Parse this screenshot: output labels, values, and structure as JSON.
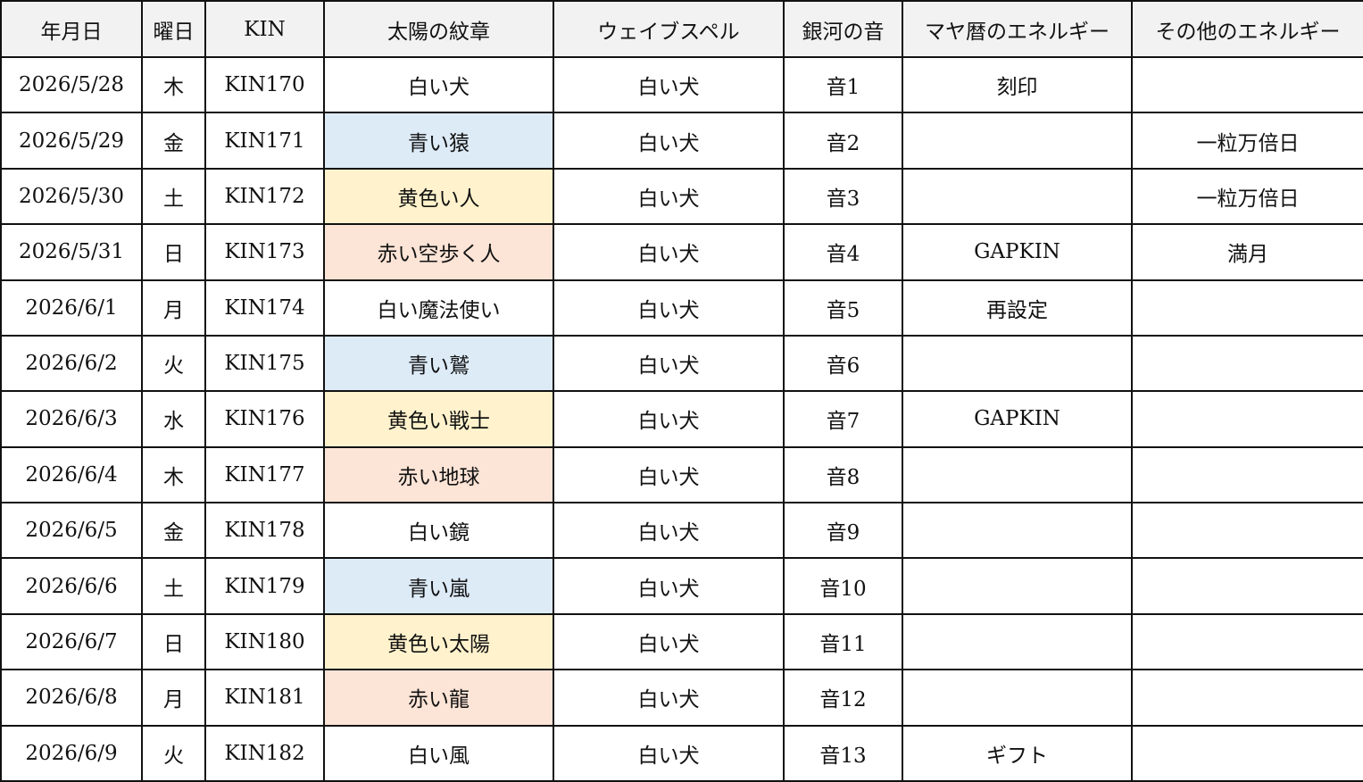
{
  "headers": [
    "年月日",
    "曜日",
    "KIN",
    "太陽の紋章",
    "ウェイブスペル",
    "銀河の音",
    "マヤ暦のエネルギー",
    "その他のエネルギー"
  ],
  "colors": {
    "blue": "#ddebf7",
    "yellow": "#fff2cc",
    "red": "#fce4d6",
    "header": "#f2f2f2"
  },
  "rows": [
    {
      "date": "2026/5/28",
      "dow": "木",
      "kin": "KIN170",
      "seal": "白い犬",
      "seal_color": "white",
      "wave": "白い犬",
      "tone": "音1",
      "maya": "刻印",
      "other": ""
    },
    {
      "date": "2026/5/29",
      "dow": "金",
      "kin": "KIN171",
      "seal": "青い猿",
      "seal_color": "blue",
      "wave": "白い犬",
      "tone": "音2",
      "maya": "",
      "other": "一粒万倍日"
    },
    {
      "date": "2026/5/30",
      "dow": "土",
      "kin": "KIN172",
      "seal": "黄色い人",
      "seal_color": "yellow",
      "wave": "白い犬",
      "tone": "音3",
      "maya": "",
      "other": "一粒万倍日"
    },
    {
      "date": "2026/5/31",
      "dow": "日",
      "kin": "KIN173",
      "seal": "赤い空歩く人",
      "seal_color": "red",
      "wave": "白い犬",
      "tone": "音4",
      "maya": "GAPKIN",
      "other": "満月"
    },
    {
      "date": "2026/6/1",
      "dow": "月",
      "kin": "KIN174",
      "seal": "白い魔法使い",
      "seal_color": "white",
      "wave": "白い犬",
      "tone": "音5",
      "maya": "再設定",
      "other": ""
    },
    {
      "date": "2026/6/2",
      "dow": "火",
      "kin": "KIN175",
      "seal": "青い鷲",
      "seal_color": "blue",
      "wave": "白い犬",
      "tone": "音6",
      "maya": "",
      "other": ""
    },
    {
      "date": "2026/6/3",
      "dow": "水",
      "kin": "KIN176",
      "seal": "黄色い戦士",
      "seal_color": "yellow",
      "wave": "白い犬",
      "tone": "音7",
      "maya": "GAPKIN",
      "other": ""
    },
    {
      "date": "2026/6/4",
      "dow": "木",
      "kin": "KIN177",
      "seal": "赤い地球",
      "seal_color": "red",
      "wave": "白い犬",
      "tone": "音8",
      "maya": "",
      "other": ""
    },
    {
      "date": "2026/6/5",
      "dow": "金",
      "kin": "KIN178",
      "seal": "白い鏡",
      "seal_color": "white",
      "wave": "白い犬",
      "tone": "音9",
      "maya": "",
      "other": ""
    },
    {
      "date": "2026/6/6",
      "dow": "土",
      "kin": "KIN179",
      "seal": "青い嵐",
      "seal_color": "blue",
      "wave": "白い犬",
      "tone": "音10",
      "maya": "",
      "other": ""
    },
    {
      "date": "2026/6/7",
      "dow": "日",
      "kin": "KIN180",
      "seal": "黄色い太陽",
      "seal_color": "yellow",
      "wave": "白い犬",
      "tone": "音11",
      "maya": "",
      "other": ""
    },
    {
      "date": "2026/6/8",
      "dow": "月",
      "kin": "KIN181",
      "seal": "赤い龍",
      "seal_color": "red",
      "wave": "白い犬",
      "tone": "音12",
      "maya": "",
      "other": ""
    },
    {
      "date": "2026/6/9",
      "dow": "火",
      "kin": "KIN182",
      "seal": "白い風",
      "seal_color": "white",
      "wave": "白い犬",
      "tone": "音13",
      "maya": "ギフト",
      "other": ""
    }
  ]
}
